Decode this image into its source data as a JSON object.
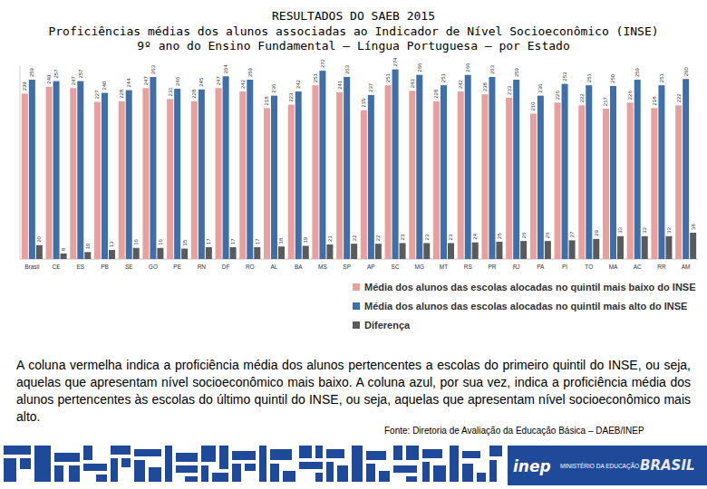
{
  "chart_data": {
    "type": "bar",
    "title": "RESULTADOS DO SAEB 2015",
    "subtitle": [
      "Proficiências médias dos alunos associadas ao Indicador de Nível Socioeconômico (INSE)",
      "9º ano do Ensino Fundamental – Língua Portuguesa – por Estado"
    ],
    "categories": [
      "Brasil",
      "CE",
      "ES",
      "PB",
      "SE",
      "GO",
      "PE",
      "RN",
      "DF",
      "RO",
      "AL",
      "BA",
      "MS",
      "SP",
      "AP",
      "SC",
      "MG",
      "MT",
      "RS",
      "PR",
      "RJ",
      "PA",
      "PI",
      "TO",
      "MA",
      "AC",
      "RR",
      "AM"
    ],
    "series": [
      {
        "name": "Média dos alunos das escolas alocadas no quintil mais baixo do INSE",
        "color": "#e8a09c",
        "values": [
          239,
          249,
          247,
          227,
          228,
          247,
          231,
          228,
          247,
          242,
          218,
          223,
          251,
          241,
          215,
          251,
          243,
          228,
          242,
          238,
          233,
          210,
          226,
          222,
          217,
          226,
          218,
          222
        ]
      },
      {
        "name": "Média dos alunos das escolas alocadas no quintil mais alto do INSE",
        "color": "#3f6fa8",
        "values": [
          259,
          257,
          257,
          240,
          244,
          263,
          246,
          245,
          264,
          259,
          236,
          242,
          272,
          263,
          237,
          274,
          266,
          251,
          266,
          263,
          259,
          236,
          253,
          251,
          250,
          259,
          251,
          260
        ]
      },
      {
        "name": "Diferença",
        "color": "#5a5a5a",
        "values": [
          20,
          8,
          10,
          13,
          16,
          16,
          15,
          17,
          17,
          17,
          18,
          19,
          21,
          22,
          22,
          23,
          23,
          23,
          24,
          25,
          26,
          26,
          27,
          29,
          33,
          33,
          33,
          38
        ]
      }
    ],
    "ylim": [
      0,
      280
    ],
    "tick_labels": "x",
    "data_labels": true,
    "grid": false,
    "legend": "bottom"
  },
  "text": {
    "description": "A coluna vermelha indica a proficiência média dos alunos pertencentes a escolas do primeiro quintil do INSE, ou seja, aquelas que apresentam nível socioeconômico mais baixo. A coluna azul, por sua vez, indica a proficiência média dos alunos pertencentes às escolas do último quintil do INSE, ou seja, aquelas que apresentam nível socioeconômico mais alto.",
    "source": "Fonte: Diretoria de Avaliação da Educação Básica – DAEB/INEP",
    "footer": [
      "inep",
      "MINISTÉRIO DA EDUCAÇÃO",
      "BRASIL"
    ]
  }
}
